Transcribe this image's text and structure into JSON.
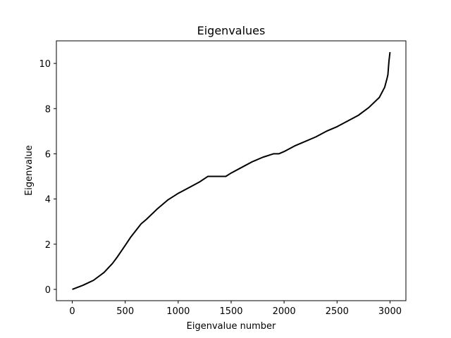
{
  "chart_data": {
    "type": "line",
    "title": "Eigenvalues",
    "xlabel": "Eigenvalue number",
    "ylabel": "Eigenvalue",
    "xlim": [
      -150,
      3150
    ],
    "ylim": [
      -0.5,
      11.0
    ],
    "xticks": [
      0,
      500,
      1000,
      1500,
      2000,
      2500,
      3000
    ],
    "yticks": [
      0,
      2,
      4,
      6,
      8,
      10
    ],
    "grid": false,
    "series": [
      {
        "color": "#000000",
        "x": [
          0,
          100,
          200,
          300,
          380,
          420,
          500,
          550,
          600,
          650,
          700,
          800,
          900,
          1000,
          1100,
          1200,
          1280,
          1300,
          1350,
          1400,
          1450,
          1500,
          1600,
          1700,
          1800,
          1900,
          1950,
          2000,
          2100,
          2200,
          2300,
          2400,
          2500,
          2600,
          2700,
          2800,
          2900,
          2950,
          2970,
          2980,
          2985,
          2990,
          2995,
          3000
        ],
        "y": [
          0.0,
          0.18,
          0.4,
          0.75,
          1.15,
          1.4,
          1.95,
          2.3,
          2.6,
          2.9,
          3.1,
          3.55,
          3.95,
          4.25,
          4.5,
          4.75,
          5.0,
          5.0,
          5.0,
          5.0,
          5.0,
          5.15,
          5.4,
          5.65,
          5.85,
          6.0,
          6.0,
          6.1,
          6.35,
          6.55,
          6.75,
          7.0,
          7.2,
          7.45,
          7.7,
          8.05,
          8.5,
          8.95,
          9.3,
          9.5,
          9.8,
          10.1,
          10.3,
          10.5
        ]
      }
    ]
  }
}
